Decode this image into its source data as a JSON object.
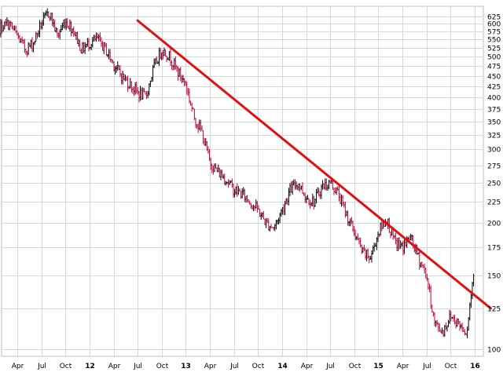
{
  "chart_data": {
    "type": "line",
    "price_scale": "log",
    "grid": true,
    "x_axis": {
      "labels": [
        {
          "text": "Apr",
          "date": "2011-04"
        },
        {
          "text": "Jul",
          "date": "2011-07"
        },
        {
          "text": "Oct",
          "date": "2011-10"
        },
        {
          "text": "12",
          "date": "2012-01",
          "bold": true
        },
        {
          "text": "Apr",
          "date": "2012-04"
        },
        {
          "text": "Jul",
          "date": "2012-07"
        },
        {
          "text": "Oct",
          "date": "2012-10"
        },
        {
          "text": "13",
          "date": "2013-01",
          "bold": true
        },
        {
          "text": "Apr",
          "date": "2013-04"
        },
        {
          "text": "Jul",
          "date": "2013-07"
        },
        {
          "text": "Oct",
          "date": "2013-10"
        },
        {
          "text": "14",
          "date": "2014-01",
          "bold": true
        },
        {
          "text": "Apr",
          "date": "2014-04"
        },
        {
          "text": "Jul",
          "date": "2014-07"
        },
        {
          "text": "Oct",
          "date": "2014-10"
        },
        {
          "text": "15",
          "date": "2015-01",
          "bold": true
        },
        {
          "text": "Apr",
          "date": "2015-04"
        },
        {
          "text": "Jul",
          "date": "2015-07"
        },
        {
          "text": "Oct",
          "date": "2015-10"
        },
        {
          "text": "16",
          "date": "2016-01",
          "bold": true
        }
      ]
    },
    "y_axis": {
      "ticks": [
        100,
        125,
        150,
        175,
        200,
        225,
        250,
        275,
        300,
        325,
        350,
        375,
        400,
        425,
        450,
        475,
        500,
        525,
        550,
        575,
        600,
        625
      ],
      "range": [
        96,
        660
      ]
    },
    "series": [
      {
        "x": [
          "2011-01",
          "2011-02",
          "2011-03",
          "2011-04",
          "2011-05",
          "2011-06",
          "2011-07",
          "2011-08",
          "2011-09",
          "2011-10",
          "2011-11",
          "2011-12",
          "2012-01",
          "2012-02",
          "2012-03",
          "2012-04",
          "2012-05",
          "2012-06",
          "2012-07",
          "2012-08",
          "2012-09",
          "2012-10",
          "2012-11",
          "2012-12",
          "2013-01",
          "2013-02",
          "2013-03",
          "2013-04",
          "2013-05",
          "2013-06",
          "2013-07",
          "2013-08",
          "2013-09",
          "2013-10",
          "2013-11",
          "2013-12",
          "2014-01",
          "2014-02",
          "2014-03",
          "2014-04",
          "2014-05",
          "2014-06",
          "2014-07",
          "2014-08",
          "2014-09",
          "2014-10",
          "2014-11",
          "2014-12",
          "2015-01",
          "2015-02",
          "2015-03",
          "2015-04",
          "2015-05",
          "2015-06",
          "2015-07",
          "2015-08",
          "2015-09",
          "2015-10",
          "2015-11",
          "2015-12",
          "2016-01"
        ],
        "y": [
          560,
          590,
          600,
          560,
          520,
          540,
          600,
          640,
          560,
          610,
          580,
          520,
          540,
          550,
          520,
          480,
          450,
          430,
          410,
          400,
          470,
          520,
          500,
          460,
          430,
          360,
          330,
          280,
          265,
          255,
          240,
          235,
          225,
          215,
          200,
          195,
          215,
          240,
          250,
          230,
          225,
          245,
          250,
          235,
          210,
          190,
          170,
          165,
          190,
          205,
          180,
          175,
          185,
          165,
          150,
          115,
          110,
          120,
          115,
          110,
          160
        ]
      }
    ],
    "trendline": {
      "color": "#e01010",
      "from": {
        "x": "2012-07",
        "y": 610
      },
      "to": {
        "x": "2016-03",
        "y": 125
      }
    },
    "colors": {
      "up": "#000000",
      "down": "#c4003c",
      "grid": "#d8d8d8"
    }
  }
}
